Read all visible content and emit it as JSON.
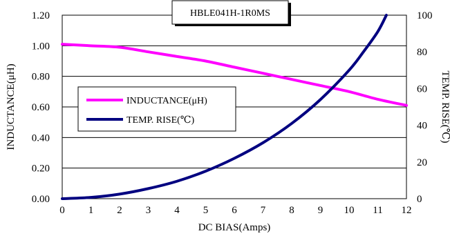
{
  "chart_data": {
    "type": "line",
    "title": "HBLE041H-1R0MS",
    "xlabel": "DC BIAS(Amps)",
    "ylabel": "INDUCTANCE(μH)",
    "y2label": "TEMP. RISE(℃)",
    "xlim": [
      0,
      12
    ],
    "ylim": [
      0,
      1.2
    ],
    "y2lim": [
      0,
      100
    ],
    "x_ticks": [
      "0",
      "1",
      "2",
      "3",
      "4",
      "5",
      "6",
      "7",
      "8",
      "9",
      "10",
      "11",
      "12"
    ],
    "y_ticks": [
      "0.00",
      "0.20",
      "0.40",
      "0.60",
      "0.80",
      "1.00",
      "1.20"
    ],
    "y2_ticks": [
      "0",
      "20",
      "40",
      "60",
      "80",
      "100"
    ],
    "grid": "horizontal",
    "legend_position": "center-left",
    "series": [
      {
        "name": "INDUCTANCE(μH)",
        "axis": "left",
        "color": "#ff00ff",
        "x": [
          0,
          1,
          2,
          3,
          4,
          5,
          6,
          7,
          8,
          9,
          10,
          11,
          12
        ],
        "values": [
          1.01,
          1.0,
          0.99,
          0.96,
          0.93,
          0.9,
          0.86,
          0.82,
          0.78,
          0.74,
          0.7,
          0.65,
          0.61
        ]
      },
      {
        "name": "TEMP. RISE(℃)",
        "axis": "right",
        "color": "#000080",
        "x": [
          0,
          1,
          2,
          3,
          4,
          5,
          6,
          7,
          8,
          9,
          10,
          10.5,
          11,
          11.3
        ],
        "values": [
          0,
          0.7,
          2.5,
          5.5,
          9.5,
          15,
          22,
          30.5,
          41,
          54,
          70,
          80,
          91,
          100
        ]
      }
    ]
  }
}
